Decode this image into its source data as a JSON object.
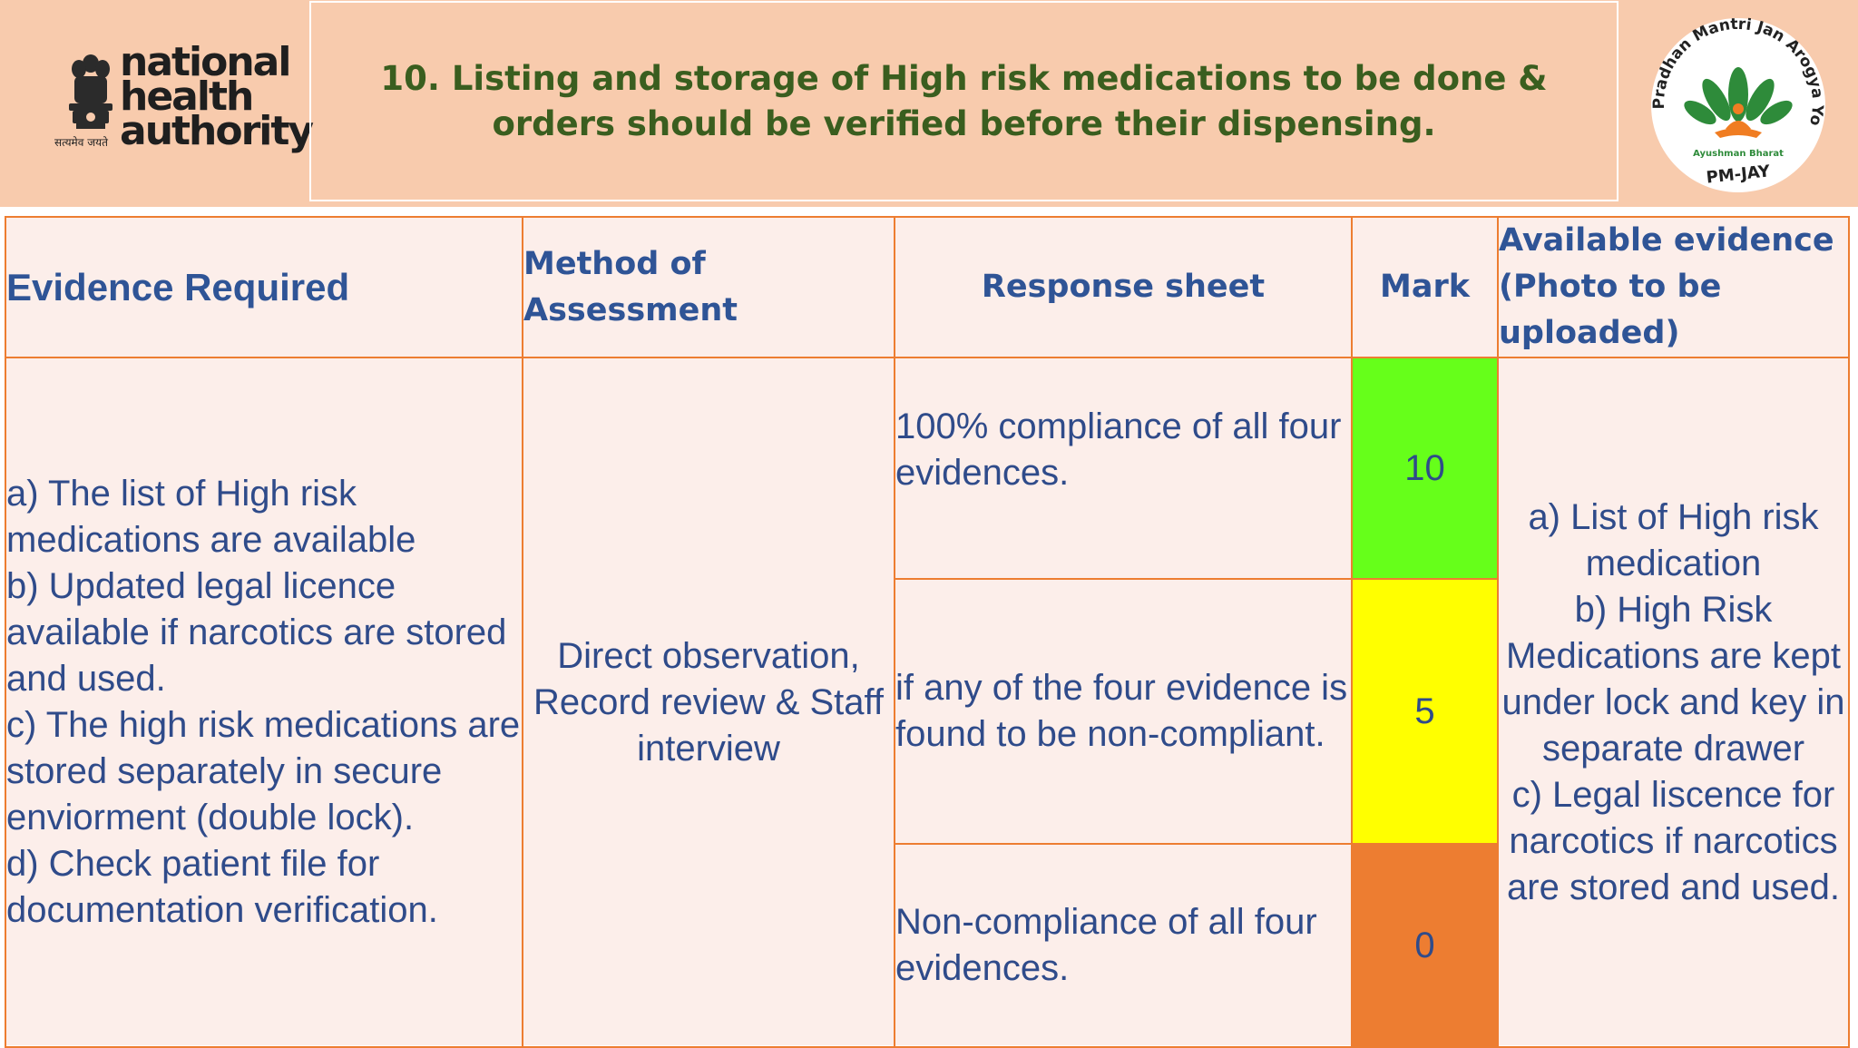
{
  "slide": {
    "title": "10. Listing and storage of High risk medications to be done & orders should be verified before their dispensing."
  },
  "logos": {
    "nha": {
      "icon": "ashoka-emblem-icon",
      "line1": "national",
      "line2": "health",
      "line3": "authority",
      "caption": "सत्यमेव जयते"
    },
    "pmjay": {
      "icon": "lotus-figure-icon",
      "ring_text": "Pradhan Mantri Jan Arogya Yojana",
      "sub_text": "Ayushman Bharat",
      "name": "PM-JAY",
      "colors": {
        "green": "#2e8b3a",
        "orange": "#f07d22",
        "ring": "#ffffff"
      }
    }
  },
  "table": {
    "headers": {
      "evidence": "Evidence Required",
      "method": "Method of Assessment",
      "response": "Response sheet",
      "mark": "Mark",
      "available": "Available evidence (Photo to be uploaded)"
    },
    "evidence_required": "a) The list of High risk medications are available\nb) Updated legal licence available if narcotics are stored and used.\nc) The high risk medications are stored separately in secure enviorment (double lock).\nd) Check patient file for documentation verification.",
    "method": "Direct observation, Record review & Staff interview",
    "responses": [
      {
        "text": "100% compliance of all four evidences.",
        "mark": "10",
        "color": "#66ff1a"
      },
      {
        "text": "if any of the four evidence is found to be non-compliant.",
        "mark": "5",
        "color": "#ffff00"
      },
      {
        "text": "Non-compliance of all four evidences.",
        "mark": "0",
        "color": "#ed7d31"
      }
    ],
    "available_evidence": "a) List of High risk medication\nb) High Risk Medications are kept under lock and key in separate drawer\nc) Legal liscence for narcotics if narcotics are stored and used."
  },
  "colors": {
    "header_bg": "#f8cbad",
    "title_text": "#3a5e1f",
    "table_text": "#2f4b8a",
    "border": "#ed7d31",
    "table_bg": "#fceeea"
  }
}
